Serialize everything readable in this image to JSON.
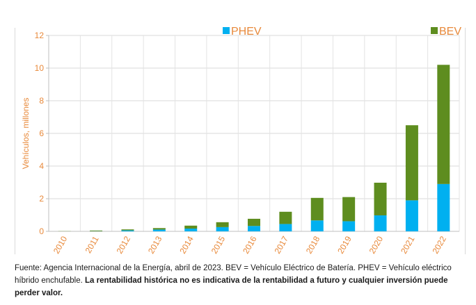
{
  "chart_data": {
    "type": "bar",
    "stacked": true,
    "categories": [
      "2010",
      "2011",
      "2012",
      "2013",
      "2014",
      "2015",
      "2016",
      "2017",
      "2018",
      "2019",
      "2020",
      "2021",
      "2022"
    ],
    "series": [
      {
        "name": "PHEV",
        "color": "#00b0f0",
        "values": [
          0.0,
          0.01,
          0.06,
          0.11,
          0.17,
          0.26,
          0.33,
          0.45,
          0.67,
          0.62,
          0.98,
          1.9,
          2.9
        ]
      },
      {
        "name": "BEV",
        "color": "#5e8d1f",
        "values": [
          0.01,
          0.04,
          0.06,
          0.09,
          0.18,
          0.3,
          0.44,
          0.75,
          1.38,
          1.48,
          2.0,
          4.6,
          7.3
        ]
      }
    ],
    "ylabel": "Vehículos, millones",
    "ylim": [
      0,
      12
    ],
    "yticks": [
      0,
      2,
      4,
      6,
      8,
      10,
      12
    ],
    "grid": true,
    "legend": "top"
  },
  "footnote": {
    "text": "Fuente: Agencia Internacional de la Energía, abril de 2023. BEV = Vehículo Eléctrico de Batería. PHEV = Vehículo eléctrico híbrido enchufable. ",
    "bold": "La rentabilidad histórica no es indicativa de la rentabilidad a futuro y cualquier inversión puede perder valor."
  }
}
